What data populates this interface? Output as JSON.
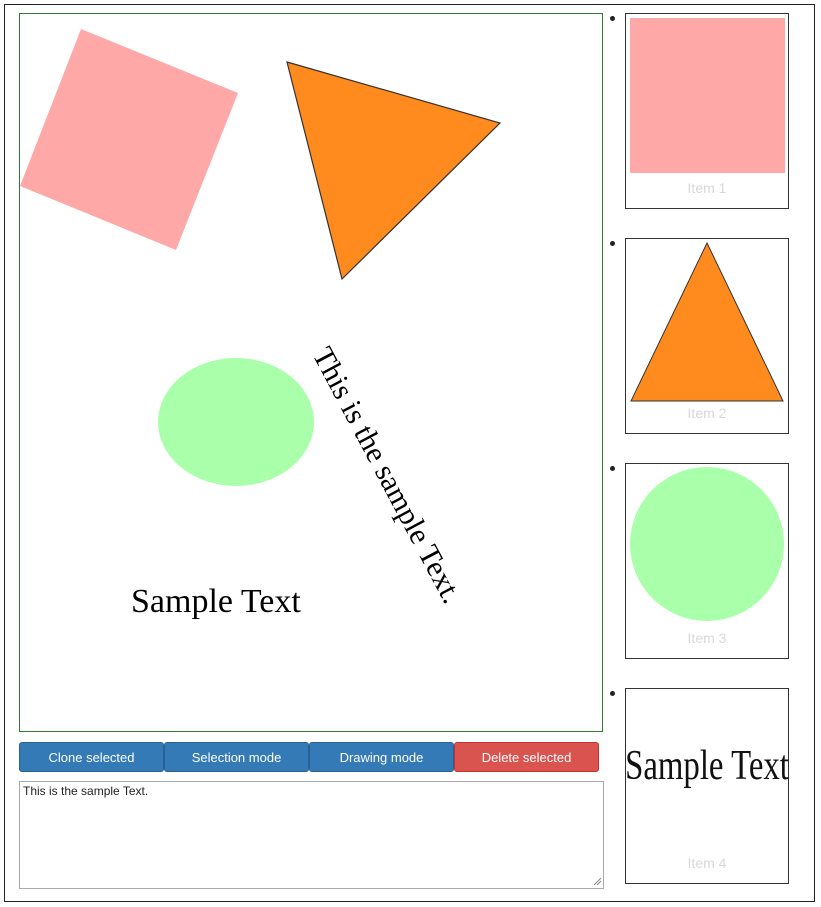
{
  "canvas": {
    "shapes": [
      {
        "kind": "square",
        "name": "pink-square",
        "fill": "#ffa8a8"
      },
      {
        "kind": "triangle",
        "name": "orange-triangle",
        "fill": "#ff8a1e",
        "stroke": "#333333"
      },
      {
        "kind": "ellipse",
        "name": "green-ellipse",
        "fill": "#aaffaa"
      }
    ],
    "rotated_text": "This is the sample Text.",
    "sample_text": "Sample Text"
  },
  "toolbar": {
    "clone_label": "Clone selected",
    "selection_label": "Selection mode",
    "drawing_label": "Drawing mode",
    "delete_label": "Delete selected",
    "primary_color": "#337ab7",
    "danger_color": "#d9534f"
  },
  "editor": {
    "value": "This is the sample Text."
  },
  "items": [
    {
      "label": "Item 1",
      "shape": "square"
    },
    {
      "label": "Item 2",
      "shape": "triangle"
    },
    {
      "label": "Item 3",
      "shape": "circle"
    },
    {
      "label": "Item 4",
      "shape": "text",
      "text": "Sample Text"
    }
  ]
}
